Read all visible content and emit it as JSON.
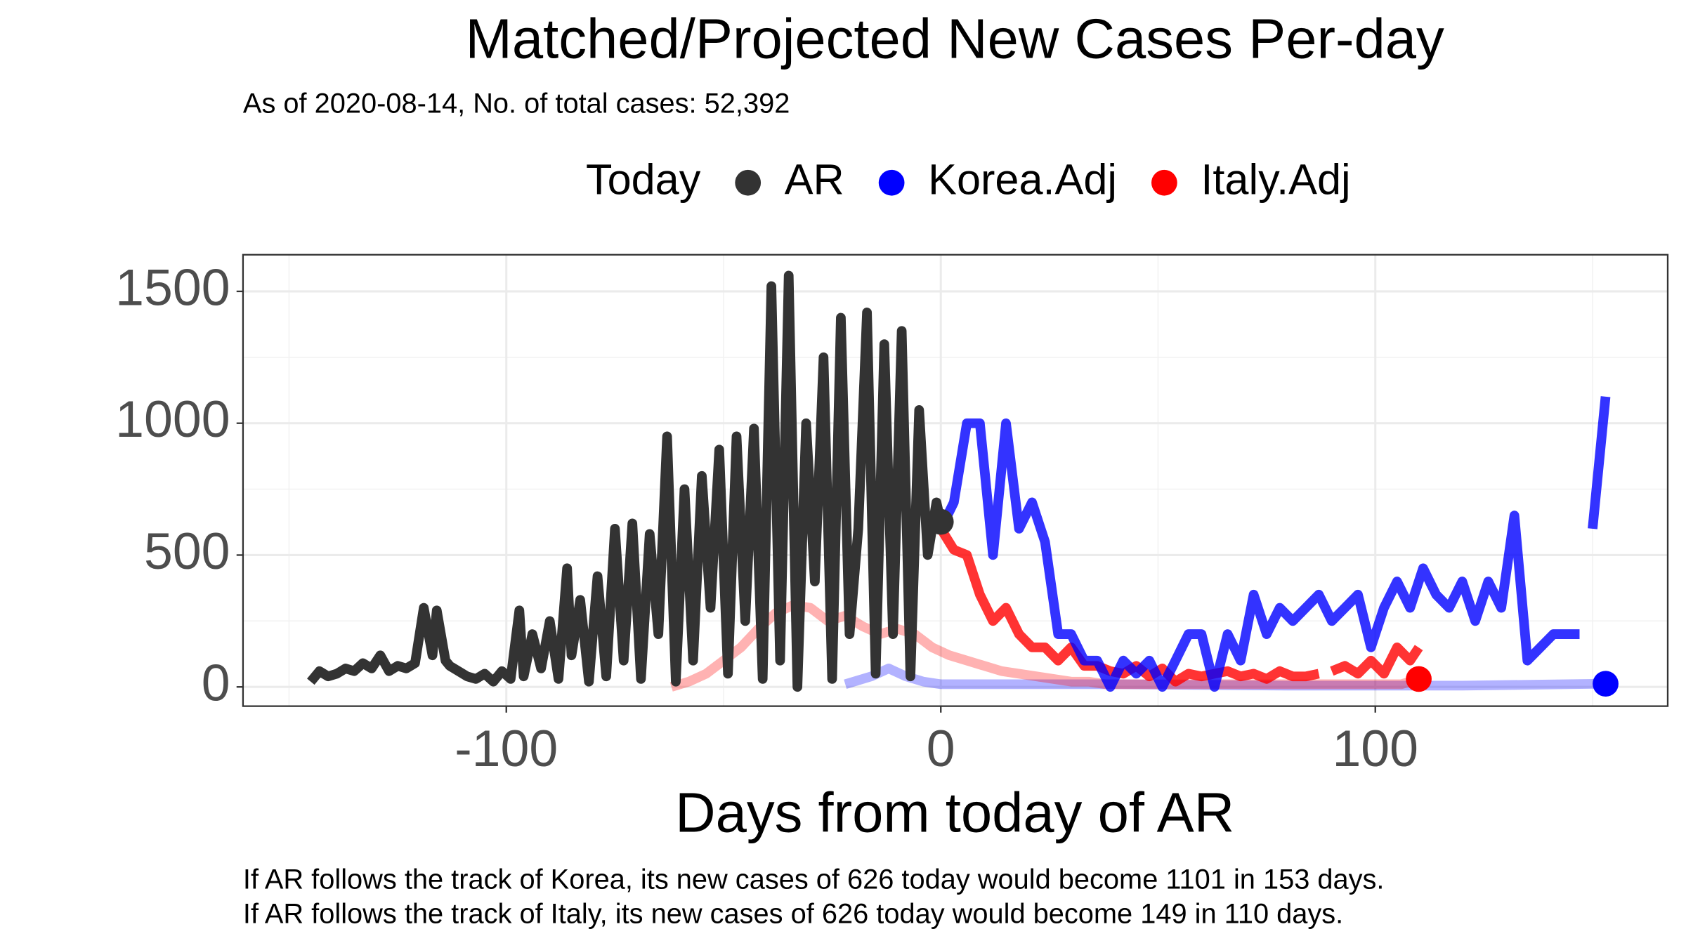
{
  "chart_data": {
    "type": "line",
    "title": "Matched/Projected New Cases Per-day",
    "subtitle": "As of 2020-08-14, No. of total cases: 52,392",
    "x_label": "Days from today of AR",
    "legend_title": "Today",
    "legend_position": "top",
    "grid": true,
    "xlim": [
      -160.6,
      167.3
    ],
    "ylim": [
      -73,
      1639
    ],
    "xticks": [
      -100,
      0,
      100
    ],
    "yticks": [
      0,
      500,
      1000,
      1500
    ],
    "series": [
      {
        "name": "AR",
        "color": "#333333",
        "opacity": 1,
        "x": [
          -145,
          -143,
          -141,
          -139,
          -137,
          -135,
          -133,
          -131,
          -129,
          -127,
          -125,
          -123,
          -121,
          -119,
          -117,
          -116,
          -114,
          -113,
          -111,
          -109,
          -107,
          -105,
          -103,
          -101,
          -99,
          -97,
          -96,
          -94,
          -92,
          -90,
          -88,
          -86,
          -85,
          -83,
          -81,
          -79,
          -77,
          -75,
          -73,
          -71,
          -69,
          -67,
          -65,
          -63,
          -61,
          -59,
          -57,
          -55,
          -53,
          -51,
          -49,
          -47,
          -45,
          -43,
          -41,
          -39,
          -37,
          -35,
          -33,
          -31,
          -29,
          -27,
          -25,
          -23,
          -21,
          -19,
          -17,
          -15,
          -13,
          -11,
          -9,
          -7,
          -5,
          -3,
          -1,
          0
        ],
        "values": [
          20,
          60,
          40,
          50,
          70,
          60,
          90,
          70,
          120,
          60,
          80,
          70,
          90,
          300,
          120,
          290,
          100,
          80,
          60,
          40,
          30,
          50,
          20,
          60,
          30,
          290,
          40,
          200,
          70,
          250,
          30,
          450,
          120,
          330,
          20,
          420,
          40,
          600,
          100,
          620,
          30,
          580,
          200,
          950,
          20,
          750,
          100,
          800,
          300,
          900,
          50,
          950,
          250,
          980,
          30,
          1520,
          100,
          1560,
          0,
          1000,
          400,
          1250,
          30,
          1400,
          200,
          600,
          1420,
          50,
          1300,
          200,
          1350,
          40,
          1050,
          500,
          700,
          626
        ],
        "today": [
          0,
          626
        ]
      },
      {
        "name": "Korea.Adj",
        "color": "#0000ff",
        "opacity": 0.8,
        "x": [
          0,
          3,
          6,
          9,
          12,
          15,
          18,
          21,
          24,
          27,
          30,
          33,
          36,
          39,
          42,
          45,
          48,
          51,
          54,
          57,
          60,
          63,
          66,
          69,
          72,
          75,
          78,
          81,
          84,
          87,
          90,
          93,
          96,
          99,
          102,
          105,
          108,
          111,
          114,
          117,
          120,
          123,
          126,
          129,
          132,
          135,
          138,
          141,
          144,
          147,
          149,
          150,
          153
        ],
        "values": [
          600,
          700,
          1000,
          1000,
          500,
          1000,
          600,
          700,
          550,
          200,
          200,
          100,
          100,
          0,
          100,
          50,
          100,
          0,
          100,
          200,
          200,
          0,
          200,
          100,
          350,
          200,
          300,
          250,
          300,
          350,
          250,
          300,
          350,
          150,
          300,
          400,
          300,
          450,
          350,
          300,
          400,
          250,
          400,
          300,
          650,
          100,
          150,
          200,
          200,
          200,
          null,
          600,
          1101
        ]
      },
      {
        "name": "Italy.Adj",
        "color": "#ff0000",
        "opacity": 0.8,
        "x": [
          0,
          3,
          6,
          9,
          12,
          15,
          18,
          21,
          24,
          27,
          30,
          33,
          36,
          39,
          42,
          45,
          48,
          51,
          54,
          57,
          60,
          63,
          66,
          69,
          72,
          75,
          78,
          81,
          84,
          87,
          88,
          90,
          93,
          96,
          99,
          102,
          105,
          108,
          110
        ],
        "values": [
          600,
          520,
          500,
          350,
          250,
          300,
          200,
          150,
          150,
          100,
          150,
          80,
          80,
          60,
          50,
          80,
          40,
          70,
          20,
          50,
          40,
          50,
          60,
          40,
          50,
          30,
          60,
          40,
          40,
          50,
          null,
          60,
          80,
          50,
          100,
          50,
          150,
          100,
          149
        ]
      },
      {
        "color": "#ff0000",
        "opacity": 0.3,
        "x": [
          -62,
          -58,
          -54,
          -50,
          -46,
          -42,
          -38,
          -34,
          -30,
          -26,
          -22,
          -18,
          -14,
          -10,
          -6,
          -2,
          2,
          6,
          10,
          14,
          18,
          22,
          26,
          30,
          34,
          38,
          42,
          46,
          50,
          54,
          58,
          62,
          66,
          70,
          74,
          78,
          82,
          86,
          90,
          94,
          98,
          102,
          106,
          110
        ],
        "values": [
          0,
          20,
          50,
          100,
          150,
          220,
          280,
          310,
          300,
          250,
          270,
          230,
          200,
          220,
          200,
          150,
          120,
          100,
          80,
          60,
          50,
          40,
          30,
          20,
          20,
          10,
          10,
          10,
          10,
          10,
          10,
          10,
          10,
          10,
          10,
          10,
          10,
          10,
          10,
          10,
          10,
          10,
          10,
          30
        ],
        "today": [
          110,
          30
        ]
      },
      {
        "color": "#0000ff",
        "opacity": 0.3,
        "x": [
          -22,
          -16,
          -12,
          -8,
          -4,
          0,
          40,
          80,
          120,
          153
        ],
        "values": [
          10,
          40,
          70,
          40,
          20,
          10,
          10,
          5,
          5,
          12
        ],
        "today": [
          153,
          12
        ]
      }
    ],
    "notes": [
      "If AR follows the track of Korea, its new cases of 626 today would become 1101 in 153 days.",
      "If AR follows the track of Italy, its new cases of 626 today would become 149 in 110 days."
    ]
  }
}
